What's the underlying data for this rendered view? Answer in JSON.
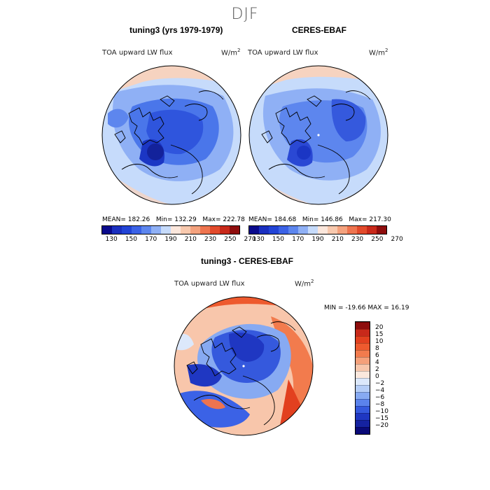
{
  "main_title": "DJF",
  "panels": [
    {
      "title": "tuning3 (yrs 1979-1979)",
      "variable": "TOA upward LW flux",
      "units": "W/m",
      "units_exp": "2",
      "stats": {
        "mean_label": "MEAN=",
        "mean": "182.26",
        "min_label": "Min=",
        "min": "132.29",
        "max_label": "Max=",
        "max": "222.78"
      }
    },
    {
      "title": "CERES-EBAF",
      "variable": "TOA upward LW flux",
      "units": "W/m",
      "units_exp": "2",
      "stats": {
        "mean_label": "MEAN=",
        "mean": "184.68",
        "min_label": "Min=",
        "min": "146.86",
        "max_label": "Max=",
        "max": "217.30"
      }
    }
  ],
  "abs_colorbar": {
    "ticks": [
      "130",
      "150",
      "170",
      "190",
      "210",
      "230",
      "250",
      "270"
    ],
    "colors": [
      "#0a0a8c",
      "#1a2fbf",
      "#2244d6",
      "#3b62e6",
      "#5d86ee",
      "#8fb0f5",
      "#c6dbfb",
      "#fbe7dc",
      "#f8c9ae",
      "#f4a27e",
      "#ee744f",
      "#e24a2b",
      "#c8291a",
      "#8e0d0d"
    ]
  },
  "diff_panel": {
    "title": "tuning3 - CERES-EBAF",
    "variable": "TOA upward LW flux",
    "units": "W/m",
    "units_exp": "2",
    "min_text": "MIN = -19.66",
    "max_text": "MAX =  16.19"
  },
  "diff_colorbar": {
    "ticks": [
      "20",
      "15",
      "10",
      "8",
      "6",
      "4",
      "2",
      "0",
      "−2",
      "−4",
      "−6",
      "−8",
      "−10",
      "−15",
      "−20"
    ],
    "colors": [
      "#8e0d0d",
      "#c8291a",
      "#e2401f",
      "#ee5a2e",
      "#f27b4d",
      "#f5a07a",
      "#f8c6ab",
      "#fbe8dd",
      "#dce8fb",
      "#b5cdf7",
      "#87aaf2",
      "#5b83ec",
      "#3559dd",
      "#1f37c2",
      "#1522a0",
      "#0a0a78"
    ]
  },
  "colors": {
    "deep_blue": "#1f3fd6",
    "mid_blue": "#4a76ea",
    "light_blue": "#a9c5f7",
    "pale_pink": "#f6d3c0",
    "red": "#e0401e",
    "coast": "#000000"
  }
}
